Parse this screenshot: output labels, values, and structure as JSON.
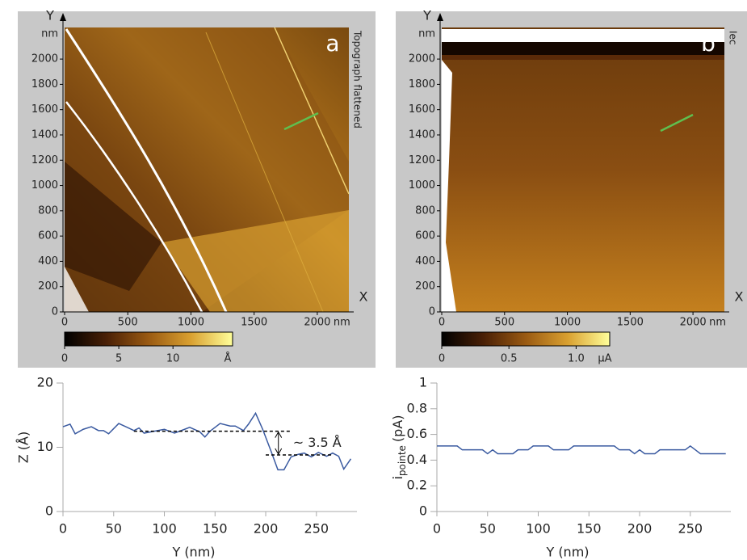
{
  "chart_data": [
    {
      "type": "image",
      "label": "a",
      "side_label": "Topograph flattened",
      "xlabel": "X",
      "ylabel": "Y",
      "x_unit": "nm",
      "y_unit": "nm",
      "xlim": [
        0,
        2250
      ],
      "ylim": [
        0,
        2250
      ],
      "xticks": [
        0,
        500,
        1000,
        1500,
        2000
      ],
      "yticks": [
        0,
        200,
        400,
        600,
        800,
        1000,
        1200,
        1400,
        1600,
        1800,
        2000
      ],
      "colormap": [
        "#000000",
        "#4a2006",
        "#9a5a12",
        "#d9a030",
        "#ffff9a"
      ],
      "clim": [
        0,
        15.5
      ],
      "cticks": [
        0,
        5,
        10
      ],
      "c_unit": "Å"
    },
    {
      "type": "image",
      "label": "b",
      "side_label": "Iec",
      "xlabel": "X",
      "ylabel": "Y",
      "x_unit": "nm",
      "y_unit": "nm",
      "xlim": [
        0,
        2250
      ],
      "ylim": [
        0,
        2250
      ],
      "xticks": [
        0,
        500,
        1000,
        1500,
        2000
      ],
      "yticks": [
        0,
        200,
        400,
        600,
        800,
        1000,
        1200,
        1400,
        1600,
        1800,
        2000
      ],
      "colormap": [
        "#000000",
        "#4a2006",
        "#9a5a12",
        "#d9a030",
        "#ffff9a"
      ],
      "clim": [
        0,
        1.25
      ],
      "cticks": [
        0,
        0.5,
        {
          "value": 1,
          "label": "1.0"
        }
      ],
      "c_unit": "µA"
    },
    {
      "type": "line",
      "xlabel": "Y (nm)",
      "ylabel": "Z (Å)",
      "color": "#3a5aa0",
      "xlim": [
        0,
        290
      ],
      "ylim": [
        0,
        20
      ],
      "xticks": [
        0,
        50,
        100,
        150,
        200,
        250
      ],
      "yticks": [
        0,
        10,
        20
      ],
      "x": [
        0,
        7,
        12,
        20,
        28,
        35,
        40,
        45,
        55,
        62,
        70,
        75,
        80,
        90,
        100,
        110,
        120,
        125,
        135,
        140,
        145,
        155,
        165,
        170,
        178,
        183,
        190,
        197,
        205,
        212,
        218,
        225,
        232,
        238,
        245,
        252,
        260,
        266,
        272,
        277,
        284
      ],
      "values": [
        13.2,
        13.6,
        12.1,
        12.8,
        13.2,
        12.6,
        12.6,
        12.1,
        13.7,
        13.2,
        12.6,
        13.0,
        12.2,
        12.5,
        12.8,
        12.2,
        12.8,
        13.1,
        12.4,
        11.6,
        12.5,
        13.7,
        13.3,
        13.3,
        12.6,
        13.6,
        15.3,
        12.8,
        9.5,
        6.5,
        6.5,
        8.5,
        8.9,
        9.1,
        8.5,
        9.2,
        8.6,
        9.1,
        8.6,
        6.6,
        8.2
      ],
      "reference_lines": [
        {
          "y": 12.5,
          "x": [
            70,
            225
          ]
        },
        {
          "y": 8.8,
          "x": [
            200,
            265
          ]
        }
      ],
      "annotation": "~ 3.5 Å"
    },
    {
      "type": "line",
      "xlabel": "Y (nm)",
      "ylabel": {
        "main": "i",
        "sub": "pointe",
        "unit": "(pA)"
      },
      "color": "#3a5aa0",
      "xlim": [
        0,
        290
      ],
      "ylim": [
        0,
        1
      ],
      "xticks": [
        0,
        50,
        100,
        150,
        200,
        250
      ],
      "yticks": [
        0,
        0.2,
        0.4,
        0.6,
        0.8,
        1
      ],
      "x": [
        0,
        5,
        10,
        15,
        20,
        25,
        30,
        35,
        40,
        45,
        50,
        55,
        60,
        65,
        70,
        75,
        80,
        85,
        90,
        95,
        100,
        105,
        110,
        115,
        120,
        125,
        130,
        135,
        140,
        145,
        150,
        155,
        160,
        165,
        170,
        175,
        180,
        185,
        190,
        195,
        200,
        205,
        210,
        215,
        220,
        225,
        230,
        235,
        240,
        245,
        250,
        255,
        260,
        265,
        270,
        275,
        280,
        285
      ],
      "values": [
        0.51,
        0.51,
        0.51,
        0.51,
        0.51,
        0.48,
        0.48,
        0.48,
        0.48,
        0.48,
        0.45,
        0.48,
        0.45,
        0.45,
        0.45,
        0.45,
        0.48,
        0.48,
        0.48,
        0.51,
        0.51,
        0.51,
        0.51,
        0.48,
        0.48,
        0.48,
        0.48,
        0.51,
        0.51,
        0.51,
        0.51,
        0.51,
        0.51,
        0.51,
        0.51,
        0.51,
        0.48,
        0.48,
        0.48,
        0.45,
        0.48,
        0.45,
        0.45,
        0.45,
        0.48,
        0.48,
        0.48,
        0.48,
        0.48,
        0.48,
        0.51,
        0.48,
        0.45,
        0.45,
        0.45,
        0.45,
        0.45,
        0.45
      ]
    }
  ]
}
